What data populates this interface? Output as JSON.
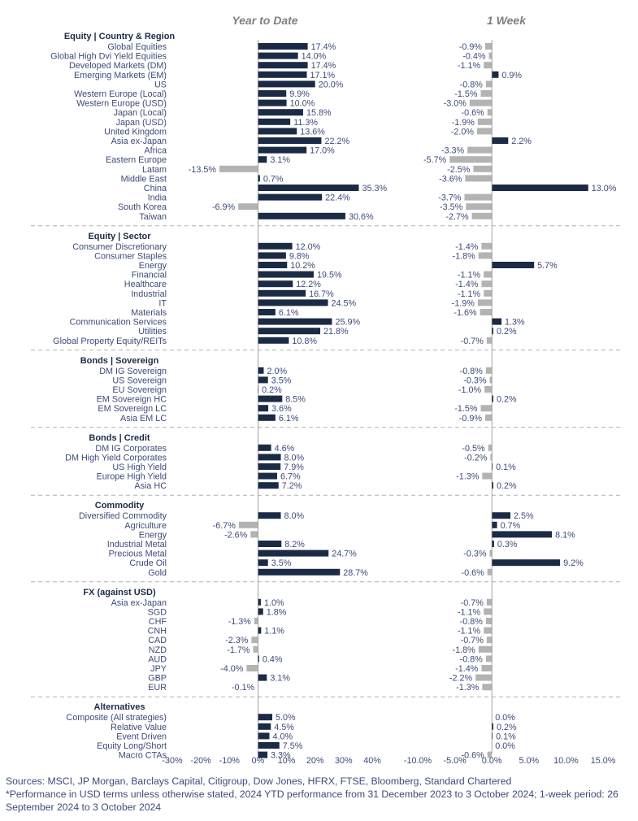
{
  "chart_data": {
    "type": "bar",
    "orientation": "horizontal",
    "panels": [
      {
        "title": "Year to Date",
        "xlim": [
          -30,
          40
        ],
        "ticks": [
          -30,
          -20,
          -10,
          0,
          10,
          20,
          30,
          40
        ],
        "tick_format": "percent0"
      },
      {
        "title": "1 Week",
        "xlim": [
          -10,
          15
        ],
        "ticks": [
          -10,
          -5,
          0,
          5,
          10,
          15
        ],
        "tick_format": "percent1"
      }
    ],
    "series": [
      {
        "name": "Year to Date",
        "positive_color": "#1b2b45",
        "negative_color": "#b3b3b3"
      },
      {
        "name": "1 Week",
        "positive_color": "#1b2b45",
        "negative_color": "#b3b3b3"
      }
    ],
    "sections": [
      {
        "title": "Equity | Country & Region",
        "rows": [
          {
            "label": "Global Equities",
            "ytd": 17.4,
            "week": -0.9
          },
          {
            "label": "Global High Dvi Yield Equities",
            "ytd": 14.0,
            "week": -0.4
          },
          {
            "label": "Developed Markets (DM)",
            "ytd": 17.4,
            "week": -1.1
          },
          {
            "label": "Emerging Markets (EM)",
            "ytd": 17.1,
            "week": 0.9
          },
          {
            "label": "US",
            "ytd": 20.0,
            "week": -0.8
          },
          {
            "label": "Western Europe (Local)",
            "ytd": 9.9,
            "week": -1.5
          },
          {
            "label": "Western Europe (USD)",
            "ytd": 10.0,
            "week": -3.0
          },
          {
            "label": "Japan (Local)",
            "ytd": 15.8,
            "week": -0.6
          },
          {
            "label": "Japan (USD)",
            "ytd": 11.3,
            "week": -1.9
          },
          {
            "label": "United Kingdom",
            "ytd": 13.6,
            "week": -2.0
          },
          {
            "label": "Asia ex-Japan",
            "ytd": 22.2,
            "week": 2.2
          },
          {
            "label": "Africa",
            "ytd": 17.0,
            "week": -3.3
          },
          {
            "label": "Eastern Europe",
            "ytd": 3.1,
            "week": -5.7
          },
          {
            "label": "Latam",
            "ytd": -13.5,
            "week": -2.5
          },
          {
            "label": "Middle East",
            "ytd": 0.7,
            "week": -3.6
          },
          {
            "label": "China",
            "ytd": 35.3,
            "week": 13.0
          },
          {
            "label": "India",
            "ytd": 22.4,
            "week": -3.7
          },
          {
            "label": "South Korea",
            "ytd": -6.9,
            "week": -3.5
          },
          {
            "label": "Taiwan",
            "ytd": 30.6,
            "week": -2.7
          }
        ]
      },
      {
        "title": "Equity | Sector",
        "rows": [
          {
            "label": "Consumer Discretionary",
            "ytd": 12.0,
            "week": -1.4
          },
          {
            "label": "Consumer Staples",
            "ytd": 9.8,
            "week": -1.8
          },
          {
            "label": "Energy",
            "ytd": 10.2,
            "week": 5.7
          },
          {
            "label": "Financial",
            "ytd": 19.5,
            "week": -1.1
          },
          {
            "label": "Healthcare",
            "ytd": 12.2,
            "week": -1.4
          },
          {
            "label": "Industrial",
            "ytd": 16.7,
            "week": -1.1
          },
          {
            "label": "IT",
            "ytd": 24.5,
            "week": -1.9
          },
          {
            "label": "Materials",
            "ytd": 6.1,
            "week": -1.6
          },
          {
            "label": "Communication Services",
            "ytd": 25.9,
            "week": 1.3
          },
          {
            "label": "Utilities",
            "ytd": 21.8,
            "week": 0.2
          },
          {
            "label": "Global Property Equity/REITs",
            "ytd": 10.8,
            "week": -0.7
          }
        ]
      },
      {
        "title": "Bonds | Sovereign",
        "rows": [
          {
            "label": "DM IG Sovereign",
            "ytd": 2.0,
            "week": -0.8
          },
          {
            "label": "US Sovereign",
            "ytd": 3.5,
            "week": -0.3
          },
          {
            "label": "EU Sovereign",
            "ytd": 0.2,
            "week": -1.0
          },
          {
            "label": "EM Sovereign HC",
            "ytd": 8.5,
            "week": 0.2
          },
          {
            "label": "EM Sovereign LC",
            "ytd": 3.6,
            "week": -1.5
          },
          {
            "label": "Asia EM LC",
            "ytd": 6.1,
            "week": -0.9
          }
        ]
      },
      {
        "title": "Bonds | Credit",
        "rows": [
          {
            "label": "DM IG Corporates",
            "ytd": 4.6,
            "week": -0.5
          },
          {
            "label": "DM High Yield Corporates",
            "ytd": 8.0,
            "week": -0.2
          },
          {
            "label": "US High Yield",
            "ytd": 7.9,
            "week": 0.1
          },
          {
            "label": "Europe High Yield",
            "ytd": 6.7,
            "week": -1.3
          },
          {
            "label": "Asia HC",
            "ytd": 7.2,
            "week": 0.2
          }
        ]
      },
      {
        "title": "Commodity",
        "rows": [
          {
            "label": "Diversified Commodity",
            "ytd": 8.0,
            "week": 2.5
          },
          {
            "label": "Agriculture",
            "ytd": -6.7,
            "week": 0.7
          },
          {
            "label": "Energy",
            "ytd": -2.6,
            "week": 8.1
          },
          {
            "label": "Industrial Metal",
            "ytd": 8.2,
            "week": 0.3
          },
          {
            "label": "Precious Metal",
            "ytd": 24.7,
            "week": -0.3
          },
          {
            "label": "Crude Oil",
            "ytd": 3.5,
            "week": 9.2
          },
          {
            "label": "Gold",
            "ytd": 28.7,
            "week": -0.6
          }
        ]
      },
      {
        "title": "FX (against USD)",
        "rows": [
          {
            "label": "Asia ex-Japan",
            "ytd": 1.0,
            "week": -0.7
          },
          {
            "label": "SGD",
            "ytd": 1.8,
            "week": -1.1
          },
          {
            "label": "CHF",
            "ytd": -1.3,
            "week": -0.8
          },
          {
            "label": "CNH",
            "ytd": 1.1,
            "week": -1.1
          },
          {
            "label": "CAD",
            "ytd": -2.3,
            "week": -0.7
          },
          {
            "label": "NZD",
            "ytd": -1.7,
            "week": -1.8
          },
          {
            "label": "AUD",
            "ytd": 0.4,
            "week": -0.8
          },
          {
            "label": "JPY",
            "ytd": -4.0,
            "week": -1.4
          },
          {
            "label": "GBP",
            "ytd": 3.1,
            "week": -2.2
          },
          {
            "label": "EUR",
            "ytd": -0.1,
            "week": -1.3
          }
        ]
      },
      {
        "title": "Alternatives",
        "rows": [
          {
            "label": "Composite (All strategies)",
            "ytd": 5.0,
            "week": 0.0
          },
          {
            "label": "Relative Value",
            "ytd": 4.5,
            "week": 0.2
          },
          {
            "label": "Event Driven",
            "ytd": 4.0,
            "week": 0.1
          },
          {
            "label": "Equity Long/Short",
            "ytd": 7.5,
            "week": 0.0
          },
          {
            "label": "Macro CTAs",
            "ytd": 3.3,
            "week": -0.6
          }
        ]
      }
    ]
  },
  "notes": {
    "sources": "Sources: MSCI, JP Morgan, Barclays Capital, Citigroup, Dow Jones, HFRX, FTSE, Bloomberg, Standard Chartered",
    "footnote": "*Performance in USD terms unless otherwise stated, 2024 YTD performance from 31 December 2023 to 3 October 2024; 1-week period: 26 September 2024 to 3 October 2024"
  }
}
